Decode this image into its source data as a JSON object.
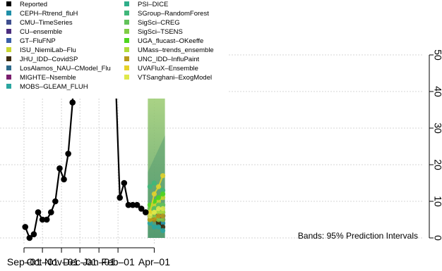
{
  "chart_data": {
    "type": "line",
    "title": "",
    "xlabel": "",
    "ylabel": "",
    "x_ticks": [
      "Sep–01",
      "Oct–01",
      "Nov–01",
      "Dec–01",
      "Jan–01",
      "Feb–01",
      "Apr–01"
    ],
    "y_ticks": [
      0,
      10,
      20,
      30,
      40,
      50
    ],
    "ylim": [
      0,
      50
    ],
    "y_axis_side": "right",
    "grid": true,
    "legend_position": "top-left",
    "band_note": "Bands: 95% Prediction Intervals",
    "reported": {
      "name": "Reported",
      "color": "#000000",
      "x": [
        "2022-09-03",
        "2022-09-10",
        "2022-09-17",
        "2022-09-24",
        "2022-10-01",
        "2022-10-08",
        "2022-10-15",
        "2022-10-22",
        "2022-10-29",
        "2022-11-05",
        "2022-11-12",
        "2022-11-19",
        "2022-11-26",
        "2022-12-03",
        "2022-12-10",
        "2022-12-17",
        "2022-12-24",
        "2022-12-31",
        "2023-01-07",
        "2023-01-14",
        "2023-01-21",
        "2023-01-28",
        "2023-02-04",
        "2023-02-11",
        "2023-02-18",
        "2023-02-25",
        "2023-03-04",
        "2023-03-11",
        "2023-03-18"
      ],
      "y": [
        3,
        0,
        1,
        7,
        5,
        5,
        7,
        10,
        19,
        16,
        23,
        37,
        null,
        null,
        null,
        null,
        null,
        null,
        null,
        null,
        43,
        44,
        11,
        15,
        9,
        9,
        9,
        8,
        7
      ]
    },
    "forecast_start": "2023-03-25",
    "forecast_end": "2023-04-15",
    "series": [
      {
        "name": "CEPH–Rtrend_fluH",
        "color": "#1f8fa8",
        "values": [
          6,
          5,
          5,
          4
        ]
      },
      {
        "name": "CMU–TimeSeries",
        "color": "#3f4f8f",
        "values": [
          7,
          6,
          6,
          6
        ]
      },
      {
        "name": "CU–ensemble",
        "color": "#4b2d7f",
        "values": [
          6,
          6,
          5,
          5
        ]
      },
      {
        "name": "GT–FluFNP",
        "color": "#3a5fa8",
        "values": [
          7,
          7,
          6,
          6
        ]
      },
      {
        "name": "ISU_NiemiLab–Flu",
        "color": "#c8d630",
        "values": [
          8,
          9,
          10,
          11
        ]
      },
      {
        "name": "JHU_IDD–CovidSP",
        "color": "#3b2a10",
        "values": [
          6,
          5,
          4,
          3
        ]
      },
      {
        "name": "LosAlamos_NAU–CModel_Flu",
        "color": "#2d6a8a",
        "values": [
          6,
          6,
          6,
          6
        ]
      },
      {
        "name": "MIGHTE–Nsemble",
        "color": "#7a1f6e",
        "values": [
          7,
          6,
          6,
          5
        ]
      },
      {
        "name": "MOBS–GLEAM_FLUH",
        "color": "#2aa6a0",
        "values": [
          4,
          3,
          3,
          2
        ]
      },
      {
        "name": "PSI–DICE",
        "color": "#2fae8a",
        "values": [
          7,
          8,
          7,
          7
        ]
      },
      {
        "name": "SGroup–RandomForest",
        "color": "#3fb77a",
        "values": [
          14,
          15,
          14,
          13
        ]
      },
      {
        "name": "SigSci–CREG",
        "color": "#62c25a",
        "values": [
          8,
          8,
          9,
          9
        ]
      },
      {
        "name": "SigSci–TSENS",
        "color": "#7fcc45",
        "values": [
          5,
          6,
          5,
          5
        ]
      },
      {
        "name": "UGA_flucast–OKeeffe",
        "color": "#4ed61e",
        "values": [
          9,
          10,
          11,
          12
        ]
      },
      {
        "name": "UMass–trends_ensemble",
        "color": "#b0dc3a",
        "values": [
          7,
          7,
          7,
          7
        ]
      },
      {
        "name": "UNC_IDD–InfluPaint",
        "color": "#b89a1a",
        "values": [
          5,
          5,
          6,
          6
        ]
      },
      {
        "name": "UVAFluX–Ensemble",
        "color": "#e6d22a",
        "values": [
          7,
          12,
          14,
          17
        ]
      },
      {
        "name": "VTSanghani–ExogModel",
        "color": "#dfe84a",
        "values": [
          6,
          7,
          8,
          8
        ]
      }
    ]
  }
}
